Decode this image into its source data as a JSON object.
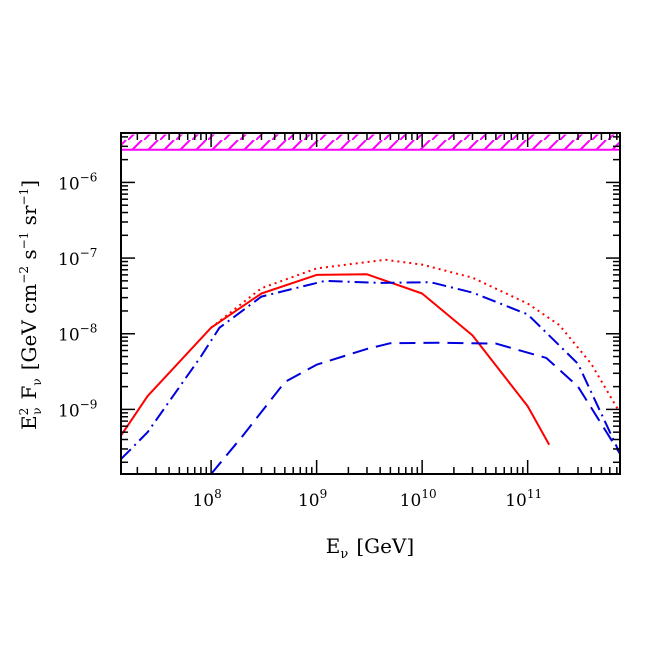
{
  "chart_data": {
    "type": "line",
    "x_scale": "log",
    "y_scale": "log",
    "xlim": [
      14000000.0,
      750000000000.0
    ],
    "ylim": [
      1.4e-10,
      4.5e-06
    ],
    "xlabel": {
      "base": "E",
      "sub": "ν",
      "unit": "[GeV]"
    },
    "ylabel": {
      "main": "E",
      "sup": "2",
      "sub": "ν",
      "f": "F",
      "fsub": "ν",
      "unit_open": "[GeV cm",
      "unit_exp1": "−2",
      "unit_mid1": " s",
      "unit_exp2": "−1",
      "unit_mid2": " sr",
      "unit_exp3": "−1",
      "unit_close": "]"
    },
    "x_ticks": [
      {
        "value": 100000000.0,
        "base": "10",
        "exp": "8"
      },
      {
        "value": 1000000000.0,
        "base": "10",
        "exp": "9"
      },
      {
        "value": 10000000000.0,
        "base": "10",
        "exp": "10"
      },
      {
        "value": 100000000000.0,
        "base": "10",
        "exp": "11"
      }
    ],
    "y_ticks": [
      {
        "value": 1e-09,
        "base": "10",
        "exp": "−9"
      },
      {
        "value": 1e-08,
        "base": "10",
        "exp": "−8"
      },
      {
        "value": 1e-07,
        "base": "10",
        "exp": "−7"
      },
      {
        "value": 1e-06,
        "base": "10",
        "exp": "−6"
      }
    ],
    "band": {
      "y_low": 2.7e-06,
      "y_high": 4.3e-06,
      "color": "#ff00ff"
    },
    "series": [
      {
        "style": "solid",
        "color": "#ff0000",
        "points": [
          [
            14000000.0,
            4.5e-10
          ],
          [
            25000000.0,
            1.5e-09
          ],
          [
            100000000.0,
            1.2e-08
          ],
          [
            300000000.0,
            3.4e-08
          ],
          [
            1000000000.0,
            6e-08
          ],
          [
            3000000000.0,
            6.1e-08
          ],
          [
            10000000000.0,
            3.4e-08
          ],
          [
            30000000000.0,
            9.5e-09
          ],
          [
            100000000000.0,
            1.1e-09
          ],
          [
            160000000000.0,
            3.4e-10
          ]
        ]
      },
      {
        "style": "dotted",
        "color": "#ff0000",
        "points": [
          [
            100000000.0,
            1.2e-08
          ],
          [
            300000000.0,
            4e-08
          ],
          [
            1000000000.0,
            7.3e-08
          ],
          [
            4500000000.0,
            9.5e-08
          ],
          [
            10000000000.0,
            8.2e-08
          ],
          [
            30000000000.0,
            5.5e-08
          ],
          [
            100000000000.0,
            2.5e-08
          ],
          [
            200000000000.0,
            1.3e-08
          ],
          [
            400000000000.0,
            4e-09
          ],
          [
            750000000000.0,
            9e-10
          ]
        ]
      },
      {
        "style": "dashdot",
        "color": "#0000dd",
        "points": [
          [
            14000000.0,
            2.2e-10
          ],
          [
            25000000.0,
            5e-10
          ],
          [
            80000000.0,
            5e-09
          ],
          [
            120000000.0,
            1.2e-08
          ],
          [
            300000000.0,
            3.1e-08
          ],
          [
            1200000000.0,
            5e-08
          ],
          [
            4000000000.0,
            4.7e-08
          ],
          [
            12000000000.0,
            4.8e-08
          ],
          [
            30000000000.0,
            3.5e-08
          ],
          [
            100000000000.0,
            1.8e-08
          ],
          [
            300000000000.0,
            4e-09
          ],
          [
            750000000000.0,
            2.6e-10
          ]
        ]
      },
      {
        "style": "dashed",
        "color": "#0000dd",
        "points": [
          [
            100000000.0,
            1.4e-10
          ],
          [
            200000000.0,
            4.5e-10
          ],
          [
            500000000.0,
            2.3e-09
          ],
          [
            1000000000.0,
            3.9e-09
          ],
          [
            3000000000.0,
            6.3e-09
          ],
          [
            5000000000.0,
            7.5e-09
          ],
          [
            15000000000.0,
            7.6e-09
          ],
          [
            50000000000.0,
            7.4e-09
          ],
          [
            150000000000.0,
            4.8e-09
          ],
          [
            300000000000.0,
            2e-09
          ],
          [
            750000000000.0,
            2.6e-10
          ]
        ]
      }
    ]
  }
}
